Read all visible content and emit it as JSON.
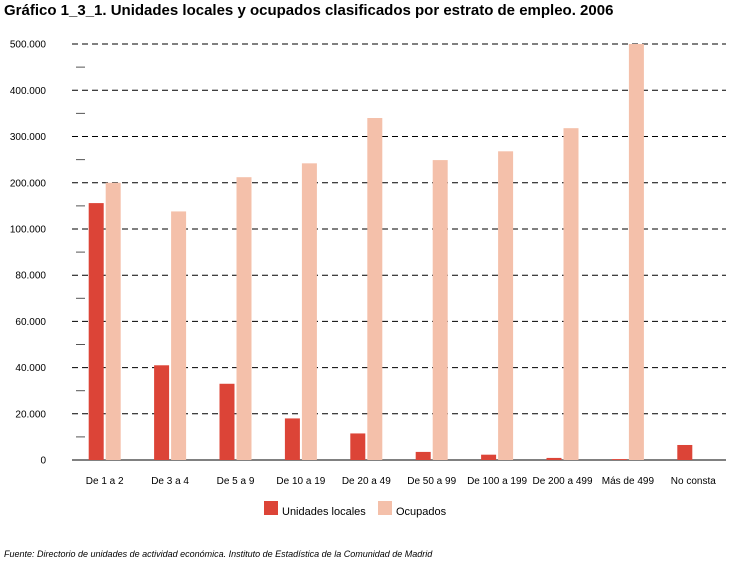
{
  "title": "Gráfico 1_3_1. Unidades locales y ocupados clasificados por estrato de empleo. 2006",
  "source": "Fuente: Directorio de unidades de actividad económica. Instituto de Estadística de la Comunidad de Madrid",
  "colors": {
    "unidades": "#dc4437",
    "ocupados": "#f4c0aa",
    "grid": "#000000"
  },
  "chart_data": {
    "type": "bar",
    "title": "Gráfico 1_3_1. Unidades locales y ocupados clasificados por estrato de empleo. 2006",
    "xlabel": "",
    "ylabel": "",
    "scale": "broken: linear 0–100.000 in lower part, linear 100.000–500.000 in upper part",
    "y_ticks": [
      "0",
      "20.000",
      "40.000",
      "60.000",
      "80.000",
      "100.000",
      "200.000",
      "300.000",
      "400.000",
      "500.000"
    ],
    "y_tick_values": [
      0,
      20000,
      40000,
      60000,
      80000,
      100000,
      200000,
      300000,
      400000,
      500000
    ],
    "ylim": [
      0,
      500000
    ],
    "grid": true,
    "legend_position": "bottom",
    "categories": [
      "De 1 a 2",
      "De 3 a 4",
      "De 5 a 9",
      "De 10 a 19",
      "De 20 a 49",
      "De 50 a 99",
      "De 100 a 199",
      "De 200 a 499",
      "Más de 499",
      "No consta"
    ],
    "series": [
      {
        "name": "Unidades locales",
        "values": [
          156000,
          41000,
          33000,
          18000,
          11500,
          3500,
          2300,
          900,
          400,
          6500
        ]
      },
      {
        "name": "Ocupados",
        "values": [
          200000,
          138000,
          212000,
          242000,
          340000,
          249000,
          268000,
          318000,
          500000,
          0
        ]
      }
    ]
  }
}
